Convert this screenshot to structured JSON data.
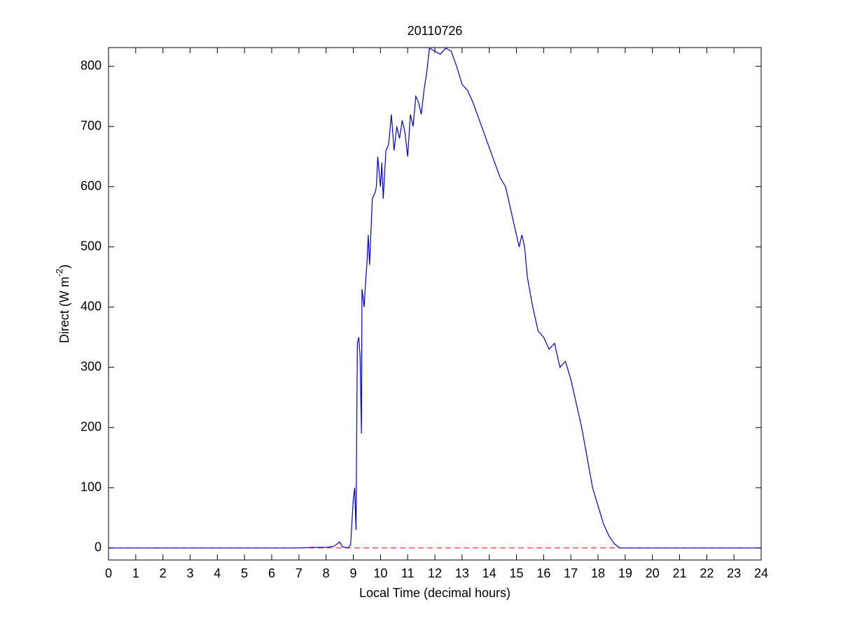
{
  "chart_data": {
    "type": "line",
    "title": "20110726",
    "xlabel": "Local Time (decimal hours)",
    "ylabel": {
      "text": "Direct (W m",
      "superscript": "-2",
      "suffix": ")"
    },
    "xlim": [
      0,
      24
    ],
    "xticks": [
      0,
      1,
      2,
      3,
      4,
      5,
      6,
      7,
      8,
      9,
      10,
      11,
      12,
      13,
      14,
      15,
      16,
      17,
      18,
      19,
      20,
      21,
      22,
      23,
      24
    ],
    "ylim": [
      -20,
      831
    ],
    "yticks": [
      0,
      100,
      200,
      300,
      400,
      500,
      600,
      700,
      800
    ],
    "hlines": [
      {
        "y": 0,
        "color": "#ff0000",
        "dashed": true
      }
    ],
    "series": [
      {
        "color": "#0000cc",
        "x": [
          0,
          7.0,
          7.5,
          8.0,
          8.3,
          8.5,
          8.6,
          8.8,
          8.9,
          9.0,
          9.05,
          9.1,
          9.15,
          9.2,
          9.25,
          9.3,
          9.32,
          9.4,
          9.45,
          9.5,
          9.55,
          9.6,
          9.7,
          9.8,
          9.85,
          9.9,
          10.0,
          10.05,
          10.1,
          10.2,
          10.3,
          10.4,
          10.5,
          10.6,
          10.7,
          10.8,
          10.9,
          11.0,
          11.1,
          11.2,
          11.3,
          11.4,
          11.5,
          11.6,
          11.7,
          11.8,
          12.0,
          12.2,
          12.4,
          12.6,
          12.8,
          13.0,
          13.2,
          13.4,
          13.6,
          13.8,
          14.0,
          14.2,
          14.4,
          14.6,
          14.8,
          15.0,
          15.1,
          15.2,
          15.3,
          15.4,
          15.6,
          15.8,
          16.0,
          16.2,
          16.4,
          16.6,
          16.8,
          17.0,
          17.2,
          17.4,
          17.6,
          17.8,
          18.0,
          18.2,
          18.4,
          18.6,
          18.8,
          19.0,
          24.0
        ],
        "values": [
          0,
          0,
          1,
          1,
          3,
          10,
          2,
          0,
          5,
          80,
          100,
          30,
          340,
          350,
          320,
          190,
          430,
          400,
          440,
          470,
          520,
          470,
          580,
          590,
          600,
          650,
          600,
          640,
          580,
          660,
          670,
          720,
          660,
          700,
          680,
          710,
          690,
          650,
          720,
          700,
          750,
          740,
          720,
          760,
          790,
          830,
          825,
          820,
          830,
          825,
          800,
          770,
          760,
          740,
          715,
          690,
          665,
          640,
          615,
          600,
          560,
          520,
          500,
          520,
          500,
          450,
          400,
          360,
          350,
          330,
          340,
          300,
          310,
          280,
          240,
          200,
          150,
          100,
          70,
          40,
          20,
          7,
          0,
          0,
          0
        ]
      }
    ]
  }
}
